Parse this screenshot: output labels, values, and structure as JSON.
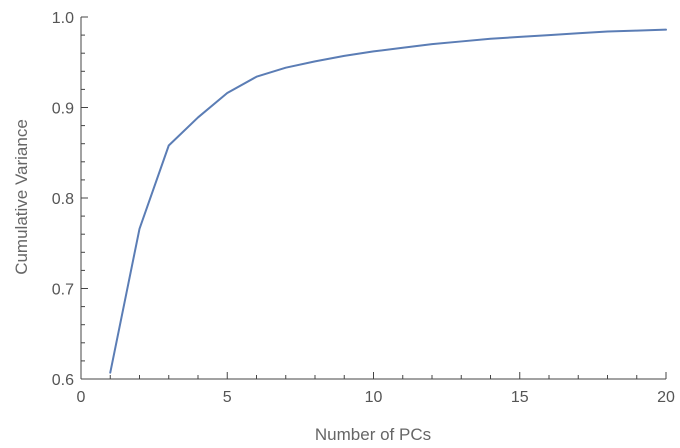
{
  "chart_data": {
    "type": "line",
    "title": "",
    "xlabel": "Number of PCs",
    "ylabel": "Cumulative Variance",
    "xlim": [
      0,
      20
    ],
    "ylim": [
      0.6,
      1.0
    ],
    "x_ticks": [
      0,
      5,
      10,
      15,
      20
    ],
    "x_tick_labels": [
      "0",
      "5",
      "10",
      "15",
      "20"
    ],
    "y_ticks": [
      0.6,
      0.7,
      0.8,
      0.9,
      1.0
    ],
    "y_tick_labels": [
      "0.6",
      "0.7",
      "0.8",
      "0.9",
      "1.0"
    ],
    "grid": false,
    "line_color": "#5b7db5",
    "series": [
      {
        "x": [
          1,
          2,
          3,
          4,
          5,
          6,
          7,
          8,
          9,
          10,
          11,
          12,
          13,
          14,
          15,
          16,
          17,
          18,
          19,
          20
        ],
        "values": [
          0.607,
          0.766,
          0.858,
          0.889,
          0.916,
          0.934,
          0.944,
          0.951,
          0.957,
          0.962,
          0.966,
          0.97,
          0.973,
          0.976,
          0.978,
          0.98,
          0.982,
          0.984,
          0.985,
          0.986
        ]
      }
    ]
  }
}
